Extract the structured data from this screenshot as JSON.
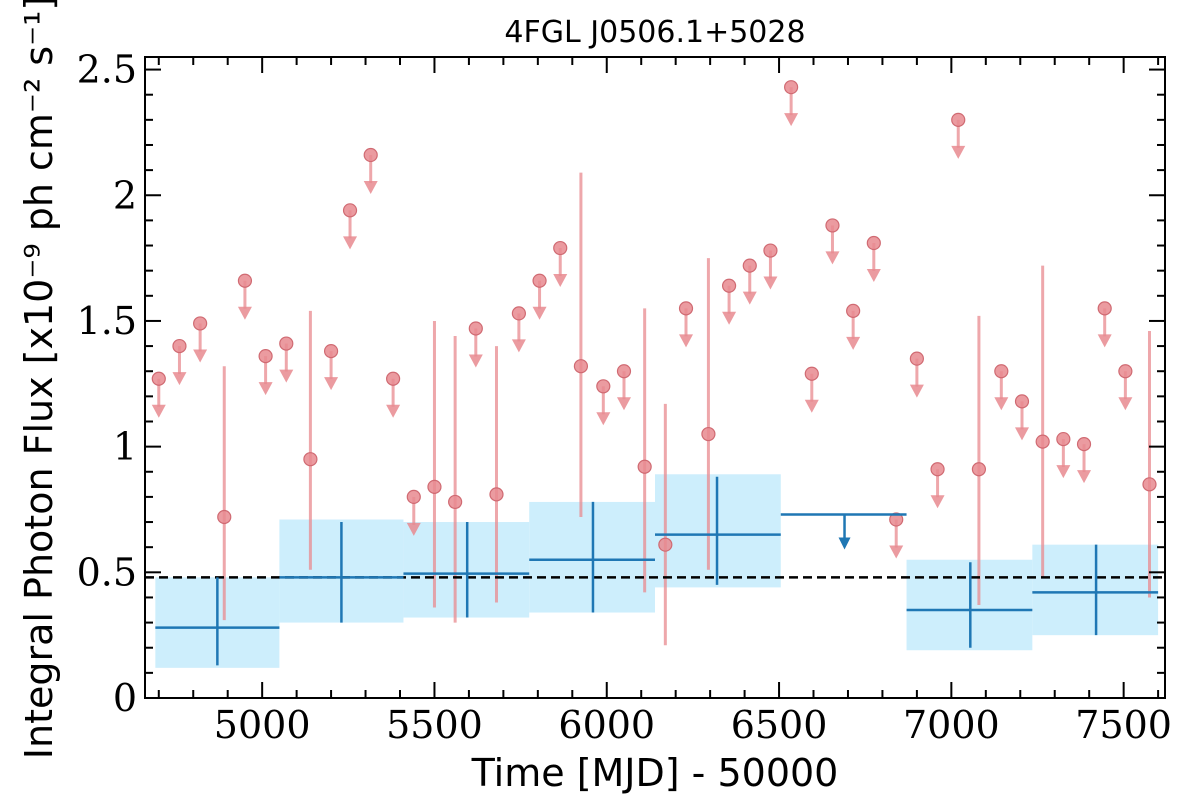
{
  "chart_data": {
    "type": "scatter",
    "title": "4FGL J0506.1+5028",
    "xlabel": "Time [MJD] - 50000",
    "ylabel": "Integral Photon Flux [x10⁻⁹ ph cm⁻² s⁻¹]",
    "xlim": [
      4660,
      7620
    ],
    "ylim": [
      0,
      2.55
    ],
    "x_ticks": [
      "5000",
      "5500",
      "6000",
      "6500",
      "7000",
      "7500"
    ],
    "y_ticks": [
      "0",
      "0.5",
      "1",
      "1.5",
      "2",
      "2.5"
    ],
    "reference_line": {
      "y": 0.48,
      "style": "dashed"
    },
    "colors": {
      "short_bins": "#e8898f",
      "long_bins": "#1f77b4",
      "long_band": "#cdeefc",
      "reference": "#000000"
    },
    "series": [
      {
        "kind": "short_bins",
        "detections": [
          {
            "x": 4890,
            "y": 0.72,
            "ylo": 0.31,
            "yhi": 1.32
          },
          {
            "x": 5140,
            "y": 0.95,
            "ylo": 0.51,
            "yhi": 1.54
          },
          {
            "x": 5500,
            "y": 0.84,
            "ylo": 0.36,
            "yhi": 1.5
          },
          {
            "x": 5560,
            "y": 0.78,
            "ylo": 0.3,
            "yhi": 1.44
          },
          {
            "x": 5680,
            "y": 0.81,
            "ylo": 0.38,
            "yhi": 1.4
          },
          {
            "x": 5925,
            "y": 1.32,
            "ylo": 0.72,
            "yhi": 2.09
          },
          {
            "x": 6110,
            "y": 0.92,
            "ylo": 0.42,
            "yhi": 1.55
          },
          {
            "x": 6170,
            "y": 0.61,
            "ylo": 0.21,
            "yhi": 1.17
          },
          {
            "x": 6295,
            "y": 1.05,
            "ylo": 0.51,
            "yhi": 1.75
          },
          {
            "x": 7080,
            "y": 0.91,
            "ylo": 0.37,
            "yhi": 1.52
          },
          {
            "x": 7265,
            "y": 1.02,
            "ylo": 0.48,
            "yhi": 1.72
          },
          {
            "x": 7575,
            "y": 0.85,
            "ylo": 0.4,
            "yhi": 1.46
          }
        ],
        "upper_limits": [
          {
            "x": 4700,
            "y": 1.27
          },
          {
            "x": 4760,
            "y": 1.4
          },
          {
            "x": 4820,
            "y": 1.49
          },
          {
            "x": 4950,
            "y": 1.66
          },
          {
            "x": 5010,
            "y": 1.36
          },
          {
            "x": 5070,
            "y": 1.41
          },
          {
            "x": 5200,
            "y": 1.38
          },
          {
            "x": 5255,
            "y": 1.94
          },
          {
            "x": 5315,
            "y": 2.16
          },
          {
            "x": 5380,
            "y": 1.27
          },
          {
            "x": 5440,
            "y": 0.8
          },
          {
            "x": 5620,
            "y": 1.47
          },
          {
            "x": 5745,
            "y": 1.53
          },
          {
            "x": 5805,
            "y": 1.66
          },
          {
            "x": 5865,
            "y": 1.79
          },
          {
            "x": 5990,
            "y": 1.24
          },
          {
            "x": 6050,
            "y": 1.3
          },
          {
            "x": 6230,
            "y": 1.55
          },
          {
            "x": 6355,
            "y": 1.64
          },
          {
            "x": 6415,
            "y": 1.72
          },
          {
            "x": 6475,
            "y": 1.78
          },
          {
            "x": 6535,
            "y": 2.43
          },
          {
            "x": 6595,
            "y": 1.29
          },
          {
            "x": 6655,
            "y": 1.88
          },
          {
            "x": 6715,
            "y": 1.54
          },
          {
            "x": 6775,
            "y": 1.81
          },
          {
            "x": 6840,
            "y": 0.71
          },
          {
            "x": 6900,
            "y": 1.35
          },
          {
            "x": 6960,
            "y": 0.91
          },
          {
            "x": 7020,
            "y": 2.3
          },
          {
            "x": 7145,
            "y": 1.3
          },
          {
            "x": 7205,
            "y": 1.18
          },
          {
            "x": 7325,
            "y": 1.03
          },
          {
            "x": 7385,
            "y": 1.01
          },
          {
            "x": 7445,
            "y": 1.55
          },
          {
            "x": 7505,
            "y": 1.3
          }
        ]
      },
      {
        "kind": "long_bins",
        "detections": [
          {
            "x": 4870,
            "xlo": 4690,
            "xhi": 5050,
            "y": 0.28,
            "ylo": 0.13,
            "yhi": 0.48,
            "band": [
              0.12,
              0.48
            ]
          },
          {
            "x": 5230,
            "xlo": 5050,
            "xhi": 5410,
            "y": 0.48,
            "ylo": 0.3,
            "yhi": 0.7,
            "band": [
              0.3,
              0.71
            ]
          },
          {
            "x": 5595,
            "xlo": 5410,
            "xhi": 5775,
            "y": 0.495,
            "ylo": 0.32,
            "yhi": 0.7,
            "band": [
              0.32,
              0.7
            ]
          },
          {
            "x": 5960,
            "xlo": 5775,
            "xhi": 6140,
            "y": 0.55,
            "ylo": 0.34,
            "yhi": 0.78,
            "band": [
              0.34,
              0.78
            ]
          },
          {
            "x": 6320,
            "xlo": 6140,
            "xhi": 6505,
            "y": 0.65,
            "ylo": 0.45,
            "yhi": 0.88,
            "band": [
              0.44,
              0.89
            ]
          },
          {
            "x": 7055,
            "xlo": 6870,
            "xhi": 7235,
            "y": 0.35,
            "ylo": 0.2,
            "yhi": 0.54,
            "band": [
              0.19,
              0.55
            ]
          },
          {
            "x": 7420,
            "xlo": 7235,
            "xhi": 7600,
            "y": 0.42,
            "ylo": 0.25,
            "yhi": 0.61,
            "band": [
              0.25,
              0.61
            ]
          }
        ],
        "upper_limits": [
          {
            "x": 6690,
            "xlo": 6505,
            "xhi": 6870,
            "y": 0.73
          }
        ]
      }
    ]
  }
}
